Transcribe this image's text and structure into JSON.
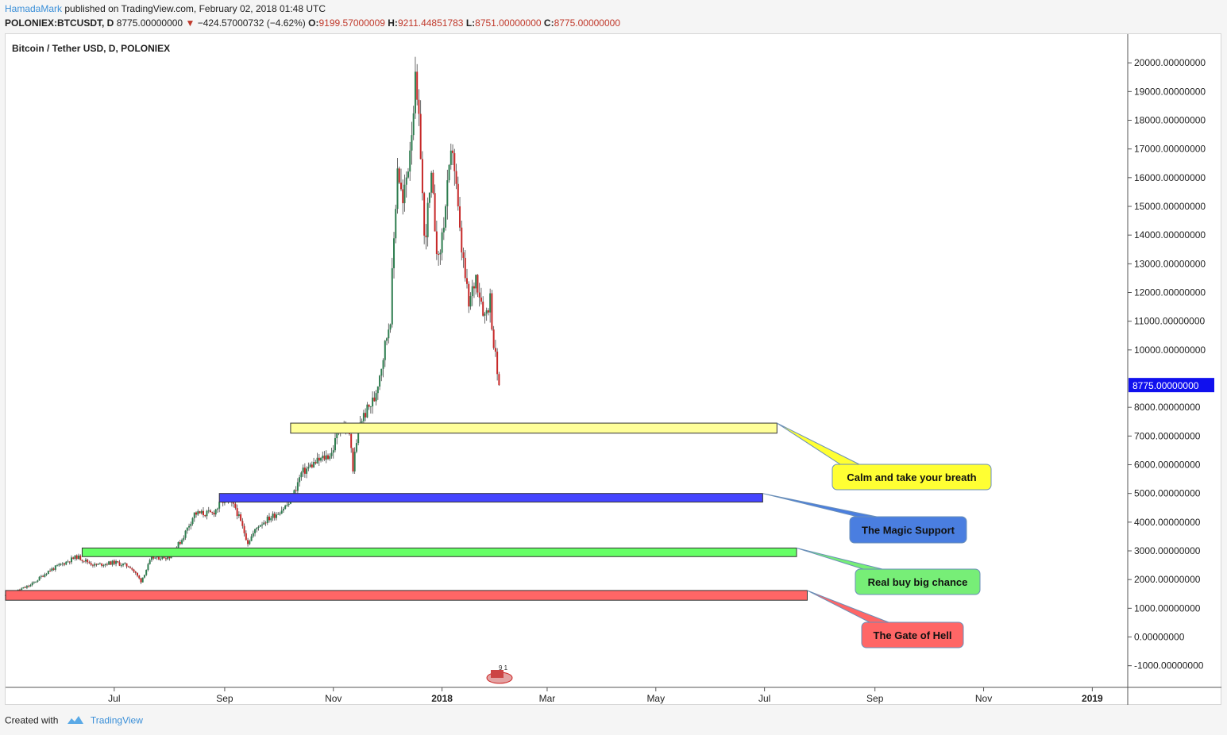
{
  "header": {
    "author": "HamadaMark",
    "published": "published on TradingView.com, February 02, 2018 01:48 UTC",
    "symbol": "POLONIEX:BTCUSDT, D",
    "last": "8775.00000000",
    "change_arrow": "▼",
    "change": "−424.57000732 (−4.62%)",
    "o_label": "O:",
    "o_value": "9199.57000009",
    "h_label": "H:",
    "h_value": "9211.44851783",
    "l_label": "L:",
    "l_value": "8751.00000000",
    "c_label": "C:",
    "c_value": "8775.00000000"
  },
  "footer": {
    "created_with": "Created with",
    "brand": "TradingView"
  },
  "colors": {
    "up": "#2e7d4f",
    "down": "#c62828",
    "price_badge": "#1010ee",
    "yellow": "#ffff99",
    "blue": "#4444ff",
    "green": "#66ff66",
    "red": "#ff6666"
  },
  "chart_data": {
    "type": "candlestick",
    "title": "Bitcoin / Tether USD, D, POLONIEX",
    "y_ticks": [
      "20000.00000000",
      "19000.00000000",
      "18000.00000000",
      "17000.00000000",
      "16000.00000000",
      "15000.00000000",
      "14000.00000000",
      "13000.00000000",
      "12000.00000000",
      "11000.00000000",
      "10000.00000000",
      "8000.00000000",
      "7000.00000000",
      "6000.00000000",
      "5000.00000000",
      "4000.00000000",
      "3000.00000000",
      "2000.00000000",
      "1000.00000000",
      "0.00000000",
      "-1000.00000000"
    ],
    "y_range": [
      -1700,
      21000
    ],
    "x_ticks": [
      {
        "label": "Jul",
        "date": "2017-07-01"
      },
      {
        "label": "Sep",
        "date": "2017-09-01"
      },
      {
        "label": "Nov",
        "date": "2017-11-01"
      },
      {
        "label": "2018",
        "date": "2018-01-01"
      },
      {
        "label": "Mar",
        "date": "2018-03-01"
      },
      {
        "label": "May",
        "date": "2018-05-01"
      },
      {
        "label": "Jul",
        "date": "2018-07-01"
      },
      {
        "label": "Sep",
        "date": "2018-09-01"
      },
      {
        "label": "Nov",
        "date": "2018-11-01"
      },
      {
        "label": "2019",
        "date": "2019-01-01"
      }
    ],
    "x_range": [
      "2017-05-01",
      "2019-01-20"
    ],
    "last_price_label": "8775.00000000",
    "last_price": 8775,
    "price_path": [
      [
        "2017-05-01",
        1450
      ],
      [
        "2017-05-15",
        1800
      ],
      [
        "2017-05-25",
        2300
      ],
      [
        "2017-06-10",
        2800
      ],
      [
        "2017-06-20",
        2500
      ],
      [
        "2017-07-01",
        2600
      ],
      [
        "2017-07-10",
        2450
      ],
      [
        "2017-07-16",
        1950
      ],
      [
        "2017-07-22",
        2750
      ],
      [
        "2017-08-01",
        2800
      ],
      [
        "2017-08-08",
        3400
      ],
      [
        "2017-08-15",
        4300
      ],
      [
        "2017-08-25",
        4300
      ],
      [
        "2017-09-01",
        4800
      ],
      [
        "2017-09-07",
        4500
      ],
      [
        "2017-09-14",
        3300
      ],
      [
        "2017-09-20",
        3900
      ],
      [
        "2017-09-30",
        4300
      ],
      [
        "2017-10-08",
        4700
      ],
      [
        "2017-10-14",
        5700
      ],
      [
        "2017-10-20",
        6000
      ],
      [
        "2017-10-31",
        6400
      ],
      [
        "2017-11-05",
        7400
      ],
      [
        "2017-11-10",
        7100
      ],
      [
        "2017-11-12",
        5900
      ],
      [
        "2017-11-16",
        7500
      ],
      [
        "2017-11-24",
        8300
      ],
      [
        "2017-11-29",
        9800
      ],
      [
        "2017-12-03",
        11200
      ],
      [
        "2017-12-07",
        16500
      ],
      [
        "2017-12-10",
        15000
      ],
      [
        "2017-12-13",
        16500
      ],
      [
        "2017-12-17",
        19200
      ],
      [
        "2017-12-20",
        17000
      ],
      [
        "2017-12-22",
        13800
      ],
      [
        "2017-12-26",
        15800
      ],
      [
        "2017-12-30",
        13000
      ],
      [
        "2018-01-03",
        15000
      ],
      [
        "2018-01-07",
        17100
      ],
      [
        "2018-01-11",
        14000
      ],
      [
        "2018-01-16",
        11500
      ],
      [
        "2018-01-20",
        12600
      ],
      [
        "2018-01-25",
        11200
      ],
      [
        "2018-01-28",
        11800
      ],
      [
        "2018-01-30",
        10200
      ],
      [
        "2018-02-02",
        8775
      ]
    ],
    "zones": [
      {
        "name": "Calm and take your breath",
        "from": 7100,
        "to": 7450,
        "start": "2017-10-08",
        "end": "2018-07-08",
        "color": "#ffff99",
        "label_color": "#ffff33"
      },
      {
        "name": "The Magic Support",
        "from": 4700,
        "to": 5000,
        "start": "2017-08-29",
        "end": "2018-06-30",
        "color": "#4444ff",
        "label_color": "#4a7ee0"
      },
      {
        "name": "Real buy big chance",
        "from": 2800,
        "to": 3100,
        "start": "2017-06-13",
        "end": "2018-07-19",
        "color": "#66ff66",
        "label_color": "#77ee77"
      },
      {
        "name": "The Gate of Hell",
        "from": 1280,
        "to": 1620,
        "start": "2017-05-01",
        "end": "2018-07-25",
        "color": "#ff6666",
        "label_color": "#ff6666"
      }
    ]
  }
}
